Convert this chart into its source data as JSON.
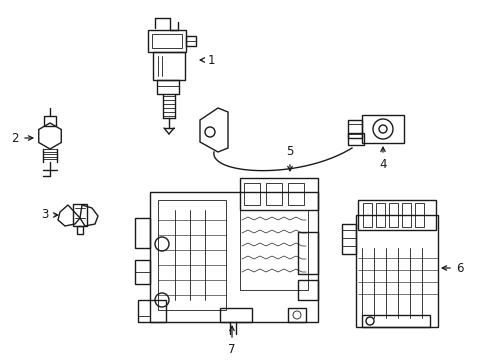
{
  "background_color": "#ffffff",
  "line_color": "#1a1a1a",
  "line_width": 1.0,
  "thin_lw": 0.6,
  "label_fontsize": 8.5,
  "fig_width": 4.89,
  "fig_height": 3.6,
  "dpi": 100
}
